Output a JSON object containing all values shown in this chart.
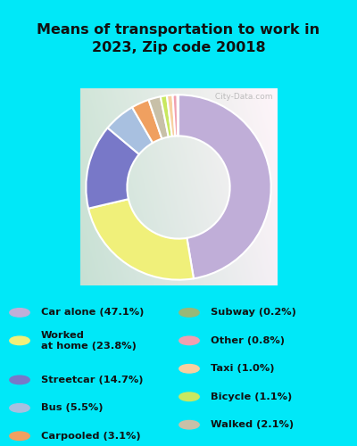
{
  "title": "Means of transportation to work in\n2023, Zip code 20018",
  "title_fontsize": 11.5,
  "title_fontweight": "bold",
  "title_color": "#111111",
  "background_color": "#00e8f8",
  "chart_bg_left": "#c8e8d0",
  "chart_bg_right": "#e8f0e0",
  "slices": [
    {
      "label": "Car alone (47.1%)",
      "value": 47.1,
      "color": "#c0aed8"
    },
    {
      "label": "Worked at home (23.8%)",
      "value": 23.8,
      "color": "#f0f07a"
    },
    {
      "label": "Streetcar (14.7%)",
      "value": 14.7,
      "color": "#7878c8"
    },
    {
      "label": "Bus (5.5%)",
      "value": 5.5,
      "color": "#a8c0e0"
    },
    {
      "label": "Carpooled (3.1%)",
      "value": 3.1,
      "color": "#f0a060"
    },
    {
      "label": "Walked (2.1%)",
      "value": 2.1,
      "color": "#c8c0a8"
    },
    {
      "label": "Bicycle (1.1%)",
      "value": 1.1,
      "color": "#c8e860"
    },
    {
      "label": "Taxi (1.0%)",
      "value": 1.0,
      "color": "#f8d0a0"
    },
    {
      "label": "Other (0.8%)",
      "value": 0.8,
      "color": "#f0a0b0"
    },
    {
      "label": "Subway (0.2%)",
      "value": 0.2,
      "color": "#98b878"
    }
  ],
  "legend_items_left": [
    {
      "label": "Car alone (47.1%)",
      "color": "#c0aed8"
    },
    {
      "label": "Worked\nat home (23.8%)",
      "color": "#f0f07a"
    },
    {
      "label": "Streetcar (14.7%)",
      "color": "#7878c8"
    },
    {
      "label": "Bus (5.5%)",
      "color": "#a8c0e0"
    },
    {
      "label": "Carpooled (3.1%)",
      "color": "#f0a060"
    }
  ],
  "legend_items_right": [
    {
      "label": "Subway (0.2%)",
      "color": "#98b878"
    },
    {
      "label": "Other (0.8%)",
      "color": "#f0a0b0"
    },
    {
      "label": "Taxi (1.0%)",
      "color": "#f8d0a0"
    },
    {
      "label": "Bicycle (1.1%)",
      "color": "#c8e860"
    },
    {
      "label": "Walked (2.1%)",
      "color": "#c8c0a8"
    }
  ],
  "watermark": " City-Data.com"
}
